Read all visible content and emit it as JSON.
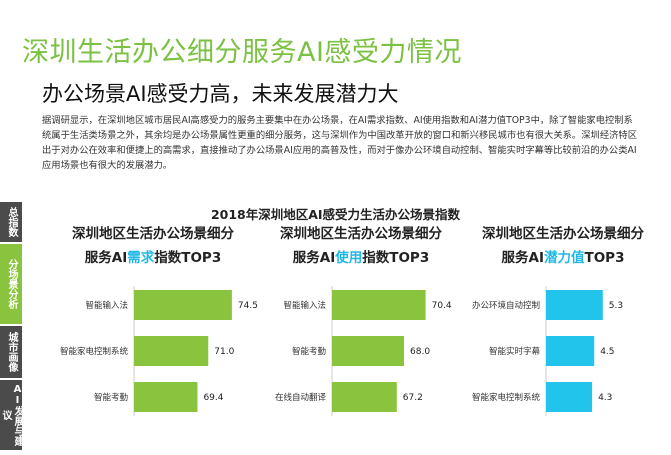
{
  "page": {
    "title": "深圳生活办公细分服务AI感受力情况",
    "subtitle": "办公场景AI感受力高，未来发展潜力大",
    "intro": "据调研显示，在深圳地区城市居民AI高感受力的服务主要集中在办公场景，在AI需求指数、AI使用指数和AI潜力值TOP3中，除了智能家电控制系统属于生活类场景之外，其余均是办公场景属性更重的细分服务，这与深圳作为中国改革开放的窗口和新兴移民城市也有很大关系。深圳经济特区出于对办公在效率和便捷上的高需求，直接推动了办公场景AI应用的高普及性，而对于像办公环境自动控制、智能实时字幕等比较前沿的办公类AI应用场景也有很大的发展潜力。"
  },
  "sidenav": {
    "items": [
      {
        "label": "总指数",
        "active": false
      },
      {
        "label": "分场景分析",
        "active": true
      },
      {
        "label": "城市画像",
        "active": false
      },
      {
        "label": "AI发展与建议",
        "active": false
      }
    ]
  },
  "chart_data": {
    "title": "2018年深圳地区AI感受力生活办公场景指数",
    "charts": [
      {
        "type": "bar",
        "orientation": "horizontal",
        "title_line1": "深圳地区生活办公场景细分",
        "title_prefix": "服务AI",
        "title_highlight": "需求",
        "title_suffix": "指数TOP3",
        "color": "#8ac43f",
        "categories": [
          "智能输入法",
          "智能家电控制系统",
          "智能考勤"
        ],
        "values": [
          74.5,
          71.0,
          69.4
        ],
        "value_labels": [
          "74.5",
          "71.0",
          "69.4"
        ],
        "xlim": [
          60,
          76
        ]
      },
      {
        "type": "bar",
        "orientation": "horizontal",
        "title_line1": "深圳地区生活办公场景细分",
        "title_prefix": "服务AI",
        "title_highlight": "使用",
        "title_suffix": "指数TOP3",
        "color": "#8ac43f",
        "categories": [
          "智能输入法",
          "智能考勤",
          "在线自动翻译"
        ],
        "values": [
          70.4,
          68.0,
          67.2
        ],
        "value_labels": [
          "70.4",
          "68.0",
          "67.2"
        ],
        "xlim": [
          60,
          72
        ]
      },
      {
        "type": "bar",
        "orientation": "horizontal",
        "title_line1": "深圳地区生活办公场景细分",
        "title_prefix": "服务AI",
        "title_highlight": "潜力值",
        "title_suffix": "TOP3",
        "color": "#22c4ec",
        "categories": [
          "办公环境自动控制",
          "智能实时字幕",
          "智能家电控制系统"
        ],
        "values": [
          5.3,
          4.5,
          4.3
        ],
        "value_labels": [
          "5.3",
          "4.5",
          "4.3"
        ],
        "xlim": [
          0,
          5.6
        ]
      }
    ]
  }
}
